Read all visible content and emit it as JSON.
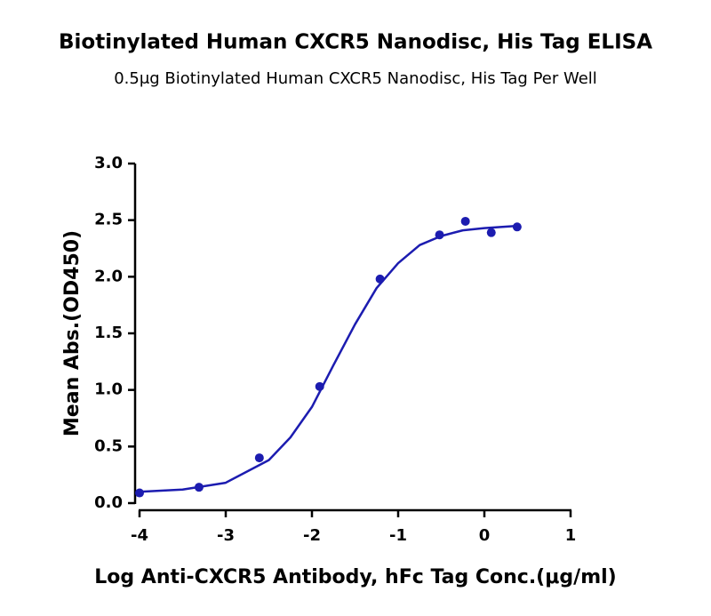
{
  "chart_data": {
    "type": "scatter",
    "title": "Biotinylated Human CXCR5 Nanodisc, His Tag ELISA",
    "subtitle": "0.5μg Biotinylated Human CXCR5 Nanodisc, His Tag Per Well",
    "x_label": "Log Anti-CXCR5 Antibody, hFc Tag Conc.(μg/ml)",
    "y_label": "Mean Abs.(OD450)",
    "xlim": [
      -4,
      1
    ],
    "xticks": [
      -4,
      -3,
      -2,
      -1,
      0,
      1
    ],
    "ylim": [
      0,
      3
    ],
    "yticks": [
      {
        "value": 0,
        "label": "0.0"
      },
      0.5,
      {
        "value": 1,
        "label": "1.0"
      },
      1.5,
      {
        "value": 2,
        "label": "2.0"
      },
      2.5,
      {
        "value": 3,
        "label": "3.0"
      }
    ],
    "series": [
      {
        "style": "markers",
        "color": "#1c1cb0",
        "x": [
          -4.0,
          -3.31,
          -2.61,
          -1.91,
          -1.21,
          -0.52,
          -0.22,
          0.08,
          0.38
        ],
        "values": [
          0.09,
          0.14,
          0.4,
          1.03,
          1.98,
          2.37,
          2.49,
          2.39,
          2.44
        ]
      },
      {
        "style": "line",
        "color": "#1c1cb0",
        "x": [
          -4,
          -3.5,
          -3,
          -2.5,
          -2.25,
          -2,
          -1.75,
          -1.5,
          -1.25,
          -1,
          -0.75,
          -0.5,
          -0.25,
          0,
          0.4
        ],
        "values": [
          0.1,
          0.12,
          0.18,
          0.38,
          0.58,
          0.85,
          1.22,
          1.58,
          1.9,
          2.12,
          2.28,
          2.36,
          2.41,
          2.43,
          2.45
        ]
      }
    ]
  }
}
